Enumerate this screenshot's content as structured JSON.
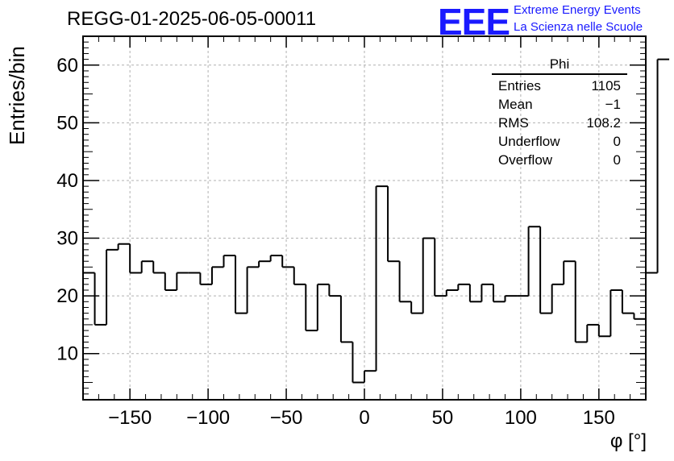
{
  "header": {
    "run_title": "REGG-01-2025-06-05-00011",
    "logo_text": "EEE",
    "logo_line1": "Extreme Energy Events",
    "logo_line2": "La Scienza nelle Scuole"
  },
  "stats_box": {
    "name": "Phi",
    "rows": [
      {
        "label": "Entries",
        "value": "1105"
      },
      {
        "label": "Mean",
        "value": "−1"
      },
      {
        "label": "RMS",
        "value": "108.2"
      },
      {
        "label": "Underflow",
        "value": "0"
      },
      {
        "label": "Overflow",
        "value": "0"
      }
    ]
  },
  "chart_data": {
    "type": "bar",
    "style": "step-histogram",
    "title": "REGG-01-2025-06-05-00011",
    "xlabel": "φ [°]",
    "ylabel": "Entries/bin",
    "xlim": [
      -180,
      180
    ],
    "ylim": [
      2,
      65
    ],
    "bin_width": 7.5,
    "x_ticks": [
      -150,
      -100,
      -50,
      0,
      50,
      100,
      150
    ],
    "x_tick_labels": [
      "−150",
      "−100",
      "−50",
      "0",
      "50",
      "100",
      "150"
    ],
    "y_ticks": [
      10,
      20,
      30,
      40,
      50,
      60
    ],
    "grid": true,
    "values": [
      24,
      15,
      28,
      29,
      24,
      26,
      24,
      21,
      24,
      24,
      22,
      25,
      27,
      17,
      25,
      26,
      27,
      25,
      22,
      14,
      22,
      20,
      12,
      5,
      7,
      39,
      26,
      19,
      17,
      30,
      20,
      21,
      22,
      19,
      22,
      19,
      20,
      20,
      32,
      17,
      22,
      26,
      12,
      15,
      13,
      21,
      17,
      16,
      24,
      61
    ],
    "colors": {
      "line": "#000000",
      "grid": "#b0b0b0",
      "logo": "#1a1aff"
    }
  }
}
